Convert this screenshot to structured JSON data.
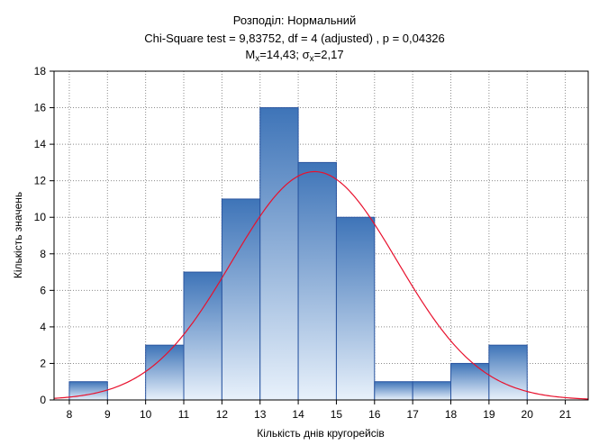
{
  "chart_data": {
    "type": "bar",
    "title": "Розподіл: Нормальний",
    "subtitle": "Chi-Square test = 9,83752, df = 4 (adjusted) , p = 0,04326",
    "stats": {
      "mean_label": "M",
      "mean_sub": "x",
      "mean_value": "=14,43; ",
      "sigma_label": "σ",
      "sigma_sub": "x",
      "sigma_value": "=2,17"
    },
    "xlabel": "Кількість днів кругорейсів",
    "ylabel": "Кількість значень",
    "xlim": [
      7.6,
      21.6
    ],
    "ylim": [
      0,
      18
    ],
    "x_ticks": [
      8,
      9,
      10,
      11,
      12,
      13,
      14,
      15,
      16,
      17,
      18,
      19,
      20,
      21
    ],
    "y_ticks": [
      0,
      2,
      4,
      6,
      8,
      10,
      12,
      14,
      16,
      18
    ],
    "bins": [
      {
        "start": 8,
        "end": 9,
        "count": 1
      },
      {
        "start": 9,
        "end": 10,
        "count": 0
      },
      {
        "start": 10,
        "end": 11,
        "count": 3
      },
      {
        "start": 11,
        "end": 12,
        "count": 7
      },
      {
        "start": 12,
        "end": 13,
        "count": 11
      },
      {
        "start": 13,
        "end": 14,
        "count": 16
      },
      {
        "start": 14,
        "end": 15,
        "count": 13
      },
      {
        "start": 15,
        "end": 16,
        "count": 10
      },
      {
        "start": 16,
        "end": 17,
        "count": 1
      },
      {
        "start": 17,
        "end": 18,
        "count": 1
      },
      {
        "start": 18,
        "end": 19,
        "count": 2
      },
      {
        "start": 19,
        "end": 20,
        "count": 3
      },
      {
        "start": 20,
        "end": 21,
        "count": 0
      }
    ],
    "normal_fit": {
      "mean": 14.43,
      "sd": 2.17,
      "n": 68,
      "bin_width": 1,
      "color": "#e8112d"
    },
    "colors": {
      "bar_top": "#3e74b8",
      "bar_bottom": "#e8f1fb",
      "bar_edge": "#2a55a0",
      "grid": "#8c8c8c",
      "frame": "#000000"
    },
    "grid": true
  }
}
